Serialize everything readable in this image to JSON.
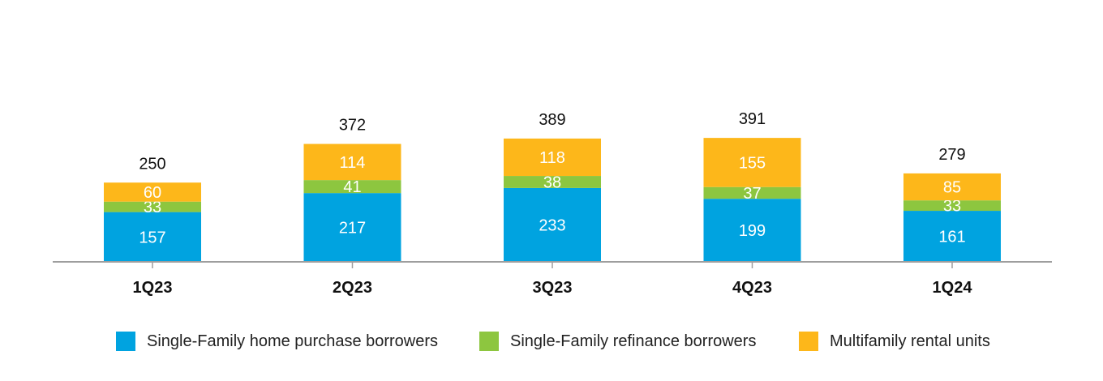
{
  "chart_data": {
    "type": "bar",
    "stacked": true,
    "categories": [
      "1Q23",
      "2Q23",
      "3Q23",
      "4Q23",
      "1Q24"
    ],
    "series": [
      {
        "name": "Single-Family home purchase borrowers",
        "color": "#00a3e0",
        "values": [
          157,
          217,
          233,
          199,
          161
        ]
      },
      {
        "name": "Single-Family refinance borrowers",
        "color": "#8dc63f",
        "values": [
          33,
          41,
          38,
          37,
          33
        ]
      },
      {
        "name": "Multifamily rental units",
        "color": "#fdb71a",
        "values": [
          60,
          114,
          118,
          155,
          85
        ]
      }
    ],
    "totals": [
      250,
      372,
      389,
      391,
      279
    ],
    "title": "",
    "xlabel": "",
    "ylabel": "",
    "ylim": [
      0,
      400
    ],
    "grid": false,
    "legend_position": "bottom",
    "axis_color": "#9e9e9e"
  }
}
